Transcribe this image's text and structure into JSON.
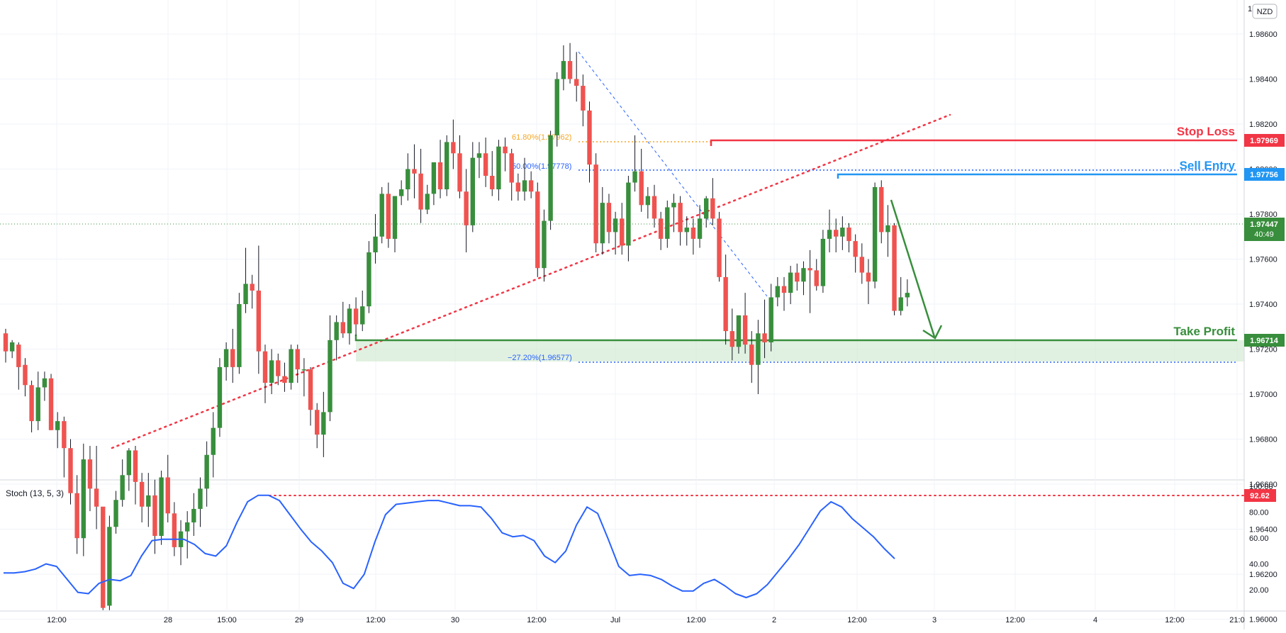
{
  "currency_badge": "NZD",
  "price_axis": {
    "ticks": [
      "1.98600",
      "1.98400",
      "1.98200",
      "1.98000",
      "1.97800",
      "1.97600",
      "1.97400",
      "1.97200",
      "1.97000",
      "1.96800",
      "1.96600",
      "1.96400",
      "1.96200",
      "1.96000"
    ],
    "top_label": "1"
  },
  "levels": {
    "stop_loss": {
      "label": "Stop Loss",
      "value": "1.97969",
      "color": "#f23645"
    },
    "sell_entry": {
      "label": "Sell Entry",
      "value": "1.97756",
      "color": "#2196f3"
    },
    "take_profit": {
      "label": "Take Profit",
      "value": "1.96714",
      "color": "#388e3c"
    },
    "last_price": {
      "value": "1.97447",
      "countdown": "40:49",
      "color": "#388e3c"
    }
  },
  "fib_labels": {
    "f618": "61.80%(1.97962)",
    "f50": "50.00%(1.97778)",
    "fneg": "−27.20%(1.96577)"
  },
  "stoch": {
    "title": "Stoch (13, 5, 3)",
    "ticks": [
      "100.00",
      "80.00",
      "60.00",
      "40.00",
      "20.00"
    ],
    "marker": "92.62",
    "values": [
      33,
      33,
      34,
      36,
      40,
      38,
      28,
      18,
      17,
      25,
      28,
      27,
      31,
      46,
      58,
      59,
      59,
      59,
      55,
      48,
      46,
      54,
      72,
      88,
      93,
      93,
      89,
      78,
      67,
      57,
      50,
      41,
      25,
      21,
      32,
      57,
      78,
      86,
      87,
      88,
      89,
      89,
      87,
      85,
      85,
      84,
      75,
      64,
      61,
      62,
      58,
      46,
      41,
      50,
      70,
      84,
      79,
      59,
      38,
      31,
      32,
      31,
      28,
      23,
      19,
      19,
      25,
      28,
      23,
      17,
      14,
      17,
      24,
      34,
      44,
      55,
      68,
      81,
      88,
      84,
      75,
      68,
      61,
      52,
      44
    ]
  },
  "time_axis": [
    "12:00",
    "28",
    "15:00",
    "29",
    "12:00",
    "30",
    "12:00",
    "Jul",
    "12:00",
    "2",
    "12:00",
    "3",
    "12:00",
    "4",
    "12:00",
    "21:0"
  ],
  "chart_data": {
    "type": "candlestick",
    "symbol_quote": "NZD",
    "y_range": [
      1.9589,
      1.9874
    ],
    "bull_color": "#388e3c",
    "bear_color": "#ef5350",
    "candles": [
      {
        "o": 1.9727,
        "h": 1.9729,
        "l": 1.9714,
        "c": 1.9719
      },
      {
        "o": 1.9719,
        "h": 1.9724,
        "l": 1.9716,
        "c": 1.9723
      },
      {
        "o": 1.9722,
        "h": 1.9723,
        "l": 1.9702,
        "c": 1.9712
      },
      {
        "o": 1.9713,
        "h": 1.9716,
        "l": 1.9699,
        "c": 1.9704
      },
      {
        "o": 1.9704,
        "h": 1.9706,
        "l": 1.9683,
        "c": 1.9688
      },
      {
        "o": 1.9688,
        "h": 1.971,
        "l": 1.9684,
        "c": 1.9703
      },
      {
        "o": 1.9703,
        "h": 1.971,
        "l": 1.9697,
        "c": 1.9707
      },
      {
        "o": 1.9707,
        "h": 1.9709,
        "l": 1.9684,
        "c": 1.9684
      },
      {
        "o": 1.9684,
        "h": 1.9692,
        "l": 1.9676,
        "c": 1.9688
      },
      {
        "o": 1.9688,
        "h": 1.969,
        "l": 1.9663,
        "c": 1.9676
      },
      {
        "o": 1.9676,
        "h": 1.968,
        "l": 1.9651,
        "c": 1.9656
      },
      {
        "o": 1.9656,
        "h": 1.9664,
        "l": 1.9629,
        "c": 1.9636
      },
      {
        "o": 1.9636,
        "h": 1.9678,
        "l": 1.9628,
        "c": 1.9671
      },
      {
        "o": 1.9671,
        "h": 1.9677,
        "l": 1.9648,
        "c": 1.9658
      },
      {
        "o": 1.9658,
        "h": 1.9677,
        "l": 1.964,
        "c": 1.965
      },
      {
        "o": 1.965,
        "h": 1.9648,
        "l": 1.9604,
        "c": 1.9605
      },
      {
        "o": 1.9606,
        "h": 1.9646,
        "l": 1.9604,
        "c": 1.9641
      },
      {
        "o": 1.9641,
        "h": 1.9657,
        "l": 1.9638,
        "c": 1.9653
      },
      {
        "o": 1.9653,
        "h": 1.9671,
        "l": 1.965,
        "c": 1.9664
      },
      {
        "o": 1.9664,
        "h": 1.9676,
        "l": 1.9657,
        "c": 1.9675
      },
      {
        "o": 1.9675,
        "h": 1.9677,
        "l": 1.9651,
        "c": 1.9661
      },
      {
        "o": 1.9661,
        "h": 1.9665,
        "l": 1.9643,
        "c": 1.965
      },
      {
        "o": 1.965,
        "h": 1.9665,
        "l": 1.9641,
        "c": 1.9655
      },
      {
        "o": 1.9655,
        "h": 1.9662,
        "l": 1.9629,
        "c": 1.9637
      },
      {
        "o": 1.9637,
        "h": 1.9666,
        "l": 1.9633,
        "c": 1.9663
      },
      {
        "o": 1.9663,
        "h": 1.9673,
        "l": 1.9643,
        "c": 1.9647
      },
      {
        "o": 1.9647,
        "h": 1.9652,
        "l": 1.9628,
        "c": 1.9632
      },
      {
        "o": 1.9632,
        "h": 1.9644,
        "l": 1.9624,
        "c": 1.9639
      },
      {
        "o": 1.9639,
        "h": 1.9648,
        "l": 1.9627,
        "c": 1.9643
      },
      {
        "o": 1.9643,
        "h": 1.9656,
        "l": 1.9637,
        "c": 1.9649
      },
      {
        "o": 1.9649,
        "h": 1.9663,
        "l": 1.9641,
        "c": 1.9658
      },
      {
        "o": 1.9658,
        "h": 1.9679,
        "l": 1.965,
        "c": 1.9673
      },
      {
        "o": 1.9673,
        "h": 1.9692,
        "l": 1.9663,
        "c": 1.9685
      },
      {
        "o": 1.9685,
        "h": 1.9716,
        "l": 1.9681,
        "c": 1.9712
      },
      {
        "o": 1.9712,
        "h": 1.9723,
        "l": 1.9706,
        "c": 1.972
      },
      {
        "o": 1.972,
        "h": 1.9729,
        "l": 1.9705,
        "c": 1.9712
      },
      {
        "o": 1.9712,
        "h": 1.9745,
        "l": 1.9709,
        "c": 1.974
      },
      {
        "o": 1.974,
        "h": 1.9765,
        "l": 1.9736,
        "c": 1.9749
      },
      {
        "o": 1.9749,
        "h": 1.9753,
        "l": 1.9738,
        "c": 1.9746
      },
      {
        "o": 1.9746,
        "h": 1.9766,
        "l": 1.9709,
        "c": 1.9719
      },
      {
        "o": 1.9719,
        "h": 1.9722,
        "l": 1.9696,
        "c": 1.9705
      },
      {
        "o": 1.9705,
        "h": 1.972,
        "l": 1.97,
        "c": 1.9715
      },
      {
        "o": 1.9715,
        "h": 1.9718,
        "l": 1.9704,
        "c": 1.9708
      },
      {
        "o": 1.9708,
        "h": 1.9714,
        "l": 1.9701,
        "c": 1.9705
      },
      {
        "o": 1.9705,
        "h": 1.9722,
        "l": 1.9702,
        "c": 1.972
      },
      {
        "o": 1.972,
        "h": 1.9722,
        "l": 1.9705,
        "c": 1.9711
      },
      {
        "o": 1.9711,
        "h": 1.9716,
        "l": 1.9699,
        "c": 1.9711
      },
      {
        "o": 1.9711,
        "h": 1.9712,
        "l": 1.9686,
        "c": 1.9693
      },
      {
        "o": 1.9693,
        "h": 1.9696,
        "l": 1.9676,
        "c": 1.9682
      },
      {
        "o": 1.9682,
        "h": 1.9701,
        "l": 1.9672,
        "c": 1.9692
      },
      {
        "o": 1.9692,
        "h": 1.9735,
        "l": 1.9688,
        "c": 1.9724
      },
      {
        "o": 1.9724,
        "h": 1.9735,
        "l": 1.9715,
        "c": 1.9732
      },
      {
        "o": 1.9732,
        "h": 1.9741,
        "l": 1.9725,
        "c": 1.9727
      },
      {
        "o": 1.9727,
        "h": 1.974,
        "l": 1.9722,
        "c": 1.9738
      },
      {
        "o": 1.9738,
        "h": 1.9743,
        "l": 1.9726,
        "c": 1.9731
      },
      {
        "o": 1.9731,
        "h": 1.9746,
        "l": 1.9728,
        "c": 1.9739
      },
      {
        "o": 1.9739,
        "h": 1.9768,
        "l": 1.9736,
        "c": 1.9763
      },
      {
        "o": 1.9763,
        "h": 1.978,
        "l": 1.9758,
        "c": 1.977
      },
      {
        "o": 1.977,
        "h": 1.9792,
        "l": 1.9767,
        "c": 1.9789
      },
      {
        "o": 1.9789,
        "h": 1.9794,
        "l": 1.9765,
        "c": 1.9769
      },
      {
        "o": 1.9769,
        "h": 1.9788,
        "l": 1.9763,
        "c": 1.9788
      },
      {
        "o": 1.9788,
        "h": 1.9795,
        "l": 1.9784,
        "c": 1.9791
      },
      {
        "o": 1.9791,
        "h": 1.9807,
        "l": 1.9786,
        "c": 1.98
      },
      {
        "o": 1.98,
        "h": 1.9811,
        "l": 1.9787,
        "c": 1.9798
      },
      {
        "o": 1.9798,
        "h": 1.9809,
        "l": 1.9776,
        "c": 1.9782
      },
      {
        "o": 1.9782,
        "h": 1.9793,
        "l": 1.978,
        "c": 1.9789
      },
      {
        "o": 1.9789,
        "h": 1.9803,
        "l": 1.9784,
        "c": 1.9803
      },
      {
        "o": 1.9803,
        "h": 1.9813,
        "l": 1.9787,
        "c": 1.9791
      },
      {
        "o": 1.9791,
        "h": 1.9815,
        "l": 1.9788,
        "c": 1.9812
      },
      {
        "o": 1.9812,
        "h": 1.9822,
        "l": 1.98,
        "c": 1.9807
      },
      {
        "o": 1.9807,
        "h": 1.9815,
        "l": 1.9787,
        "c": 1.979
      },
      {
        "o": 1.979,
        "h": 1.98,
        "l": 1.9763,
        "c": 1.9775
      },
      {
        "o": 1.9775,
        "h": 1.9812,
        "l": 1.9772,
        "c": 1.9805
      },
      {
        "o": 1.9805,
        "h": 1.9812,
        "l": 1.9796,
        "c": 1.9807
      },
      {
        "o": 1.9807,
        "h": 1.9814,
        "l": 1.9792,
        "c": 1.9797
      },
      {
        "o": 1.9797,
        "h": 1.9808,
        "l": 1.9788,
        "c": 1.9791
      },
      {
        "o": 1.9791,
        "h": 1.9813,
        "l": 1.9786,
        "c": 1.981
      },
      {
        "o": 1.981,
        "h": 1.9814,
        "l": 1.9799,
        "c": 1.9807
      },
      {
        "o": 1.9807,
        "h": 1.9809,
        "l": 1.9786,
        "c": 1.9794
      },
      {
        "o": 1.9794,
        "h": 1.9798,
        "l": 1.9786,
        "c": 1.979
      },
      {
        "o": 1.979,
        "h": 1.9805,
        "l": 1.9786,
        "c": 1.9795
      },
      {
        "o": 1.9795,
        "h": 1.9799,
        "l": 1.9787,
        "c": 1.979
      },
      {
        "o": 1.979,
        "h": 1.9794,
        "l": 1.9752,
        "c": 1.9756
      },
      {
        "o": 1.9756,
        "h": 1.9782,
        "l": 1.975,
        "c": 1.9777
      },
      {
        "o": 1.9777,
        "h": 1.9817,
        "l": 1.9773,
        "c": 1.9815
      },
      {
        "o": 1.9815,
        "h": 1.9843,
        "l": 1.981,
        "c": 1.984
      },
      {
        "o": 1.984,
        "h": 1.9855,
        "l": 1.9835,
        "c": 1.9848
      },
      {
        "o": 1.9848,
        "h": 1.9856,
        "l": 1.9838,
        "c": 1.984
      },
      {
        "o": 1.984,
        "h": 1.9852,
        "l": 1.983,
        "c": 1.9837
      },
      {
        "o": 1.9837,
        "h": 1.9842,
        "l": 1.9819,
        "c": 1.9826
      },
      {
        "o": 1.9826,
        "h": 1.983,
        "l": 1.9794,
        "c": 1.9802
      },
      {
        "o": 1.9802,
        "h": 1.9807,
        "l": 1.9763,
        "c": 1.9767
      },
      {
        "o": 1.9767,
        "h": 1.9792,
        "l": 1.9762,
        "c": 1.9785
      },
      {
        "o": 1.9785,
        "h": 1.9789,
        "l": 1.9767,
        "c": 1.9772
      },
      {
        "o": 1.9772,
        "h": 1.9781,
        "l": 1.9762,
        "c": 1.9778
      },
      {
        "o": 1.9778,
        "h": 1.9785,
        "l": 1.9762,
        "c": 1.9766
      },
      {
        "o": 1.9766,
        "h": 1.9797,
        "l": 1.9759,
        "c": 1.9794
      },
      {
        "o": 1.9794,
        "h": 1.9815,
        "l": 1.979,
        "c": 1.9799
      },
      {
        "o": 1.9799,
        "h": 1.9809,
        "l": 1.9781,
        "c": 1.9784
      },
      {
        "o": 1.9784,
        "h": 1.9792,
        "l": 1.9778,
        "c": 1.9788
      },
      {
        "o": 1.9788,
        "h": 1.9793,
        "l": 1.9774,
        "c": 1.9778
      },
      {
        "o": 1.9778,
        "h": 1.9781,
        "l": 1.9764,
        "c": 1.9769
      },
      {
        "o": 1.9769,
        "h": 1.9786,
        "l": 1.9765,
        "c": 1.9783
      },
      {
        "o": 1.9783,
        "h": 1.9789,
        "l": 1.9772,
        "c": 1.9785
      },
      {
        "o": 1.9785,
        "h": 1.9788,
        "l": 1.9766,
        "c": 1.9772
      },
      {
        "o": 1.9772,
        "h": 1.9779,
        "l": 1.9766,
        "c": 1.9774
      },
      {
        "o": 1.9774,
        "h": 1.9778,
        "l": 1.9762,
        "c": 1.9769
      },
      {
        "o": 1.9769,
        "h": 1.9784,
        "l": 1.9765,
        "c": 1.9778
      },
      {
        "o": 1.9778,
        "h": 1.9788,
        "l": 1.9774,
        "c": 1.9787
      },
      {
        "o": 1.9787,
        "h": 1.9796,
        "l": 1.9775,
        "c": 1.9778
      },
      {
        "o": 1.9778,
        "h": 1.9781,
        "l": 1.975,
        "c": 1.9752
      },
      {
        "o": 1.9752,
        "h": 1.9762,
        "l": 1.9722,
        "c": 1.9728
      },
      {
        "o": 1.9728,
        "h": 1.9738,
        "l": 1.9715,
        "c": 1.9721
      },
      {
        "o": 1.9721,
        "h": 1.9735,
        "l": 1.9718,
        "c": 1.9735
      },
      {
        "o": 1.9735,
        "h": 1.9745,
        "l": 1.9718,
        "c": 1.9722
      },
      {
        "o": 1.9722,
        "h": 1.9728,
        "l": 1.9705,
        "c": 1.9713
      },
      {
        "o": 1.9713,
        "h": 1.9733,
        "l": 1.97,
        "c": 1.9727
      },
      {
        "o": 1.9727,
        "h": 1.9742,
        "l": 1.9716,
        "c": 1.9723
      },
      {
        "o": 1.9723,
        "h": 1.9749,
        "l": 1.9719,
        "c": 1.9743
      },
      {
        "o": 1.9743,
        "h": 1.9752,
        "l": 1.9739,
        "c": 1.9748
      },
      {
        "o": 1.9748,
        "h": 1.9752,
        "l": 1.9737,
        "c": 1.9745
      },
      {
        "o": 1.9745,
        "h": 1.9757,
        "l": 1.974,
        "c": 1.9754
      },
      {
        "o": 1.9754,
        "h": 1.9758,
        "l": 1.9746,
        "c": 1.975
      },
      {
        "o": 1.975,
        "h": 1.9759,
        "l": 1.9744,
        "c": 1.9756
      },
      {
        "o": 1.9756,
        "h": 1.9764,
        "l": 1.9736,
        "c": 1.9755
      },
      {
        "o": 1.9755,
        "h": 1.976,
        "l": 1.9746,
        "c": 1.9748
      },
      {
        "o": 1.9748,
        "h": 1.9773,
        "l": 1.9745,
        "c": 1.9769
      },
      {
        "o": 1.9769,
        "h": 1.9782,
        "l": 1.9763,
        "c": 1.9773
      },
      {
        "o": 1.9773,
        "h": 1.9778,
        "l": 1.9763,
        "c": 1.977
      },
      {
        "o": 1.977,
        "h": 1.9779,
        "l": 1.9764,
        "c": 1.9774
      },
      {
        "o": 1.9774,
        "h": 1.9776,
        "l": 1.9763,
        "c": 1.9768
      },
      {
        "o": 1.9768,
        "h": 1.9771,
        "l": 1.9754,
        "c": 1.9761
      },
      {
        "o": 1.9761,
        "h": 1.9767,
        "l": 1.9749,
        "c": 1.9754
      },
      {
        "o": 1.9754,
        "h": 1.976,
        "l": 1.974,
        "c": 1.975
      },
      {
        "o": 1.975,
        "h": 1.9794,
        "l": 1.9747,
        "c": 1.9792
      },
      {
        "o": 1.9792,
        "h": 1.9795,
        "l": 1.9767,
        "c": 1.9772
      },
      {
        "o": 1.9772,
        "h": 1.9784,
        "l": 1.9761,
        "c": 1.9775
      },
      {
        "o": 1.9775,
        "h": 1.9776,
        "l": 1.9735,
        "c": 1.9737
      },
      {
        "o": 1.9737,
        "h": 1.9752,
        "l": 1.9735,
        "c": 1.9743
      },
      {
        "o": 1.9743,
        "h": 1.9751,
        "l": 1.9739,
        "c": 1.9745
      }
    ],
    "horizontal_levels": [
      {
        "name": "Stop Loss",
        "value": 1.97969
      },
      {
        "name": "Sell Entry",
        "value": 1.97756
      },
      {
        "name": "Take Profit",
        "value": 1.96714
      },
      {
        "name": "Fib 61.80%",
        "value": 1.97962
      },
      {
        "name": "Fib 50.00%",
        "value": 1.97778
      },
      {
        "name": "Fib -27.20%",
        "value": 1.96577
      }
    ],
    "stochastic": {
      "name": "Stoch (13, 5, 3)",
      "range": [
        0,
        100
      ],
      "marker": 92.62
    }
  }
}
